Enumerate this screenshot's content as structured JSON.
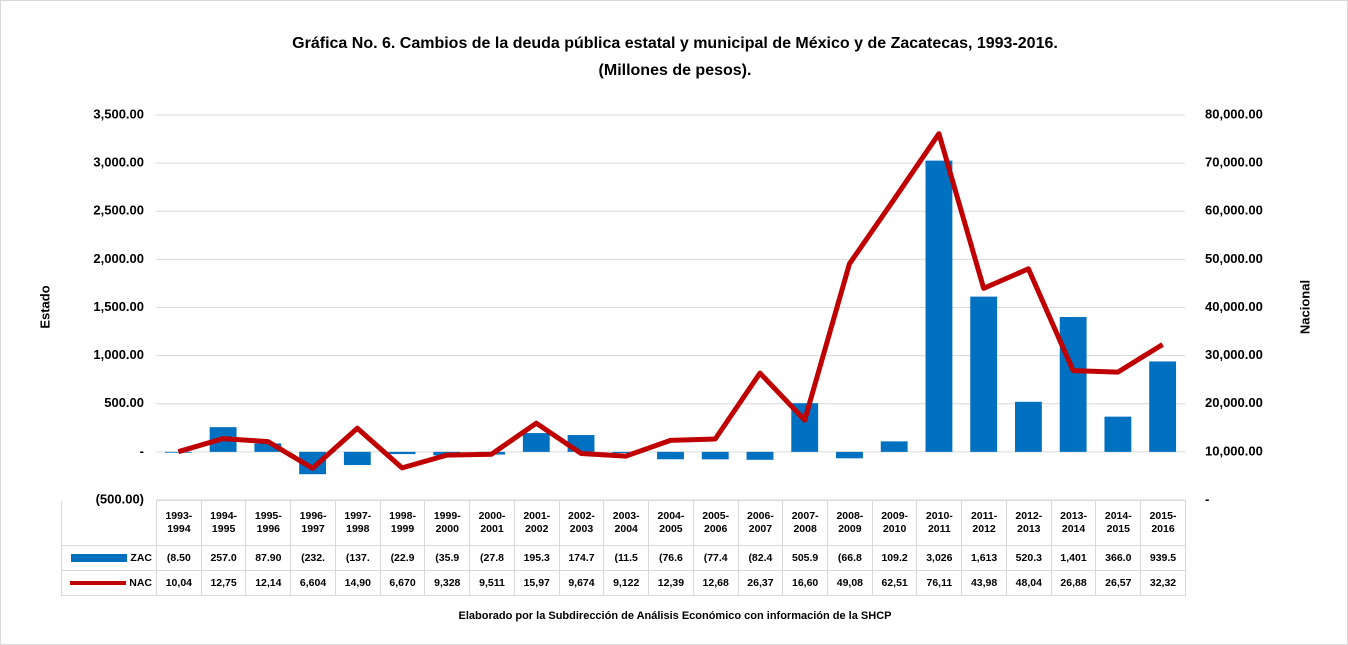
{
  "chart_data": {
    "type": "bar-line",
    "title": "Gráfica No. 6. Cambios de la deuda pública estatal y municipal de México y de Zacatecas, 1993-2016.",
    "subtitle": "(Millones de pesos).",
    "y_label": "Estado",
    "y2_label": "Nacional",
    "note": "Elaborado por la Subdirección de Análisis Económico con información de la SHCP",
    "categories": [
      "1993-1994",
      "1994-1995",
      "1995-1996",
      "1996-1997",
      "1997-1998",
      "1998-1999",
      "1999-2000",
      "2000-2001",
      "2001-2002",
      "2002-2003",
      "2003-2004",
      "2004-2005",
      "2005-2006",
      "2006-2007",
      "2007-2008",
      "2008-2009",
      "2009-2010",
      "2010-2011",
      "2011-2012",
      "2012-2013",
      "2013-2014",
      "2014-2015",
      "2015-2016"
    ],
    "series": [
      {
        "name": "ZAC",
        "type": "bar",
        "color": "#0070c0",
        "values": [
          -8.5,
          257.0,
          87.9,
          -232,
          -137,
          -22.9,
          -35.9,
          -27.8,
          195.3,
          174.7,
          -11.5,
          -76.6,
          -77.4,
          -82.4,
          505.9,
          -66.8,
          109.2,
          3026,
          1613,
          520.3,
          1401,
          366.0,
          939.5
        ],
        "value_labels": [
          "(8.50",
          "257.0",
          "87.90",
          "(232.",
          "(137.",
          "(22.9",
          "(35.9",
          "(27.8",
          "195.3",
          "174.7",
          "(11.5",
          "(76.6",
          "(77.4",
          "(82.4",
          "505.9",
          "(66.8",
          "109.2",
          "3,026",
          "1,613",
          "520.3",
          "1,401",
          "366.0",
          "939.5"
        ]
      },
      {
        "name": "NAC",
        "type": "line",
        "axis": "y2",
        "color": "#c00000",
        "values": [
          10040,
          12750,
          12140,
          6604,
          14900,
          6670,
          9328,
          9511,
          15970,
          9674,
          9122,
          12390,
          12680,
          26370,
          16600,
          49080,
          62510,
          76110,
          43980,
          48040,
          26880,
          26570,
          32320
        ],
        "value_labels": [
          "10,04",
          "12,75",
          "12,14",
          "6,604",
          "14,90",
          "6,670",
          "9,328",
          "9,511",
          "15,97",
          "9,674",
          "9,122",
          "12,39",
          "12,68",
          "26,37",
          "16,60",
          "49,08",
          "62,51",
          "76,11",
          "43,98",
          "48,04",
          "26,88",
          "26,57",
          "32,32"
        ]
      }
    ],
    "ylim": [
      -500,
      3500
    ],
    "yticks": [
      {
        "value": -500,
        "label": "(500.00)"
      },
      {
        "value": 0,
        "label": "-"
      },
      {
        "value": 500,
        "label": "500.00"
      },
      {
        "value": 1000,
        "label": "1,000.00"
      },
      {
        "value": 1500,
        "label": "1,500.00"
      },
      {
        "value": 2000,
        "label": "2,000.00"
      },
      {
        "value": 2500,
        "label": "2,500.00"
      },
      {
        "value": 3000,
        "label": "3,000.00"
      },
      {
        "value": 3500,
        "label": "3,500.00"
      }
    ],
    "y2lim": [
      0,
      80000
    ],
    "y2ticks": [
      {
        "value": 0,
        "label": "-"
      },
      {
        "value": 10000,
        "label": "10,000.00"
      },
      {
        "value": 20000,
        "label": "20,000.00"
      },
      {
        "value": 30000,
        "label": "30,000.00"
      },
      {
        "value": 40000,
        "label": "40,000.00"
      },
      {
        "value": 50000,
        "label": "50,000.00"
      },
      {
        "value": 60000,
        "label": "60,000.00"
      },
      {
        "value": 70000,
        "label": "70,000.00"
      },
      {
        "value": 80000,
        "label": "80,000.00"
      }
    ],
    "grid": true
  }
}
